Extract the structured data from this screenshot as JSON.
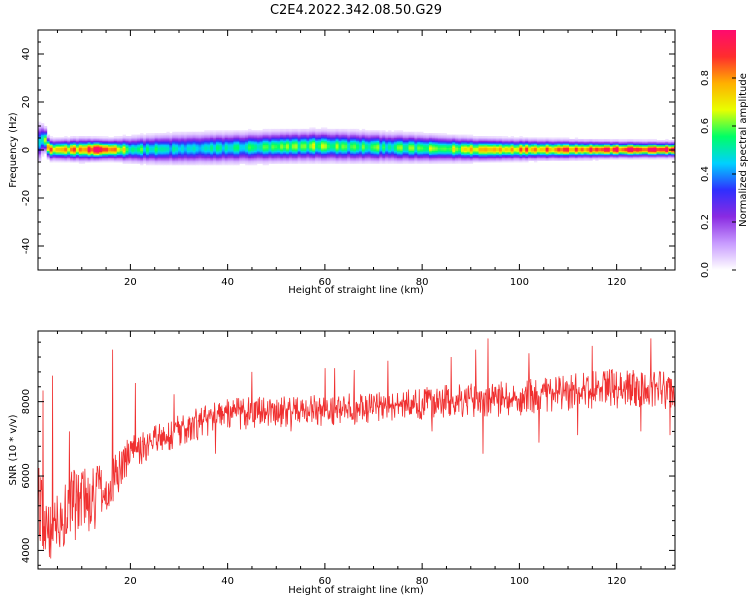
{
  "figure": {
    "title": "C2E4.2022.342.08.50.G29"
  },
  "chart_data": [
    {
      "type": "heatmap",
      "xlabel": "Height of straight line (km)",
      "ylabel": "Frequency (Hz)",
      "xlim": [
        1,
        132
      ],
      "ylim": [
        -50,
        50
      ],
      "xticks": [
        20,
        40,
        60,
        80,
        100,
        120
      ],
      "yticks": [
        -40,
        -20,
        0,
        20,
        40
      ],
      "colorbar": {
        "label": "Normalized spectral amplitude",
        "ticks": [
          0.0,
          0.2,
          0.4,
          0.6,
          0.8
        ],
        "range": [
          0,
          1
        ],
        "colormap": [
          "#ffffff",
          "#c89bff",
          "#8a2be2",
          "#2f2fff",
          "#00d0ff",
          "#00ff66",
          "#e8ff00",
          "#ffb000",
          "#ff2d2d",
          "#ff0a6e"
        ]
      },
      "ridge": [
        {
          "x": 1,
          "center": 3,
          "width": 3.5,
          "peak": 0.55
        },
        {
          "x": 2,
          "center": 5,
          "width": 2.5,
          "peak": 0.6
        },
        {
          "x": 3,
          "center": 0,
          "width": 2,
          "peak": 0.8
        },
        {
          "x": 5,
          "center": 0,
          "width": 2,
          "peak": 0.75
        },
        {
          "x": 10,
          "center": 0,
          "width": 2.2,
          "peak": 0.8
        },
        {
          "x": 13,
          "center": 0,
          "width": 2,
          "peak": 0.95
        },
        {
          "x": 16,
          "center": 0,
          "width": 2,
          "peak": 0.85
        },
        {
          "x": 20,
          "center": 0,
          "width": 2.5,
          "peak": 0.55
        },
        {
          "x": 30,
          "center": 0.3,
          "width": 3,
          "peak": 0.45
        },
        {
          "x": 40,
          "center": 0.7,
          "width": 3,
          "peak": 0.5
        },
        {
          "x": 50,
          "center": 1.2,
          "width": 3,
          "peak": 0.55
        },
        {
          "x": 58,
          "center": 1.5,
          "width": 3,
          "peak": 0.62
        },
        {
          "x": 65,
          "center": 1.2,
          "width": 3,
          "peak": 0.55
        },
        {
          "x": 75,
          "center": 0.8,
          "width": 2.8,
          "peak": 0.55
        },
        {
          "x": 85,
          "center": 0.3,
          "width": 2.5,
          "peak": 0.6
        },
        {
          "x": 91,
          "center": 0,
          "width": 2.2,
          "peak": 0.75
        },
        {
          "x": 100,
          "center": 0,
          "width": 2,
          "peak": 0.8
        },
        {
          "x": 110,
          "center": 0,
          "width": 1.8,
          "peak": 0.88
        },
        {
          "x": 120,
          "center": 0,
          "width": 1.6,
          "peak": 0.92
        },
        {
          "x": 132,
          "center": 0,
          "width": 1.5,
          "peak": 0.95
        }
      ]
    },
    {
      "type": "line",
      "xlabel": "Height of straight line (km)",
      "ylabel": "SNR (10 * v/v)",
      "xlim": [
        1,
        132
      ],
      "ylim": [
        3500,
        9900
      ],
      "xticks": [
        20,
        40,
        60,
        80,
        100,
        120
      ],
      "yticks": [
        4000,
        6000,
        8000
      ],
      "series": [
        {
          "color": "#f03030",
          "envelope": [
            {
              "x": 1,
              "mean": 5000,
              "low": 4400,
              "high": 6700
            },
            {
              "x": 3,
              "mean": 4200,
              "low": 3600,
              "high": 5200
            },
            {
              "x": 5,
              "mean": 4700,
              "low": 4000,
              "high": 5700
            },
            {
              "x": 8,
              "mean": 5000,
              "low": 4200,
              "high": 6200
            },
            {
              "x": 11,
              "mean": 5200,
              "low": 4400,
              "high": 6200
            },
            {
              "x": 14,
              "mean": 5500,
              "low": 4700,
              "high": 6300
            },
            {
              "x": 16,
              "mean": 5900,
              "low": 5200,
              "high": 6500
            },
            {
              "x": 20,
              "mean": 6700,
              "low": 6100,
              "high": 7100
            },
            {
              "x": 25,
              "mean": 7000,
              "low": 6500,
              "high": 7400
            },
            {
              "x": 30,
              "mean": 7300,
              "low": 6800,
              "high": 7700
            },
            {
              "x": 35,
              "mean": 7500,
              "low": 7000,
              "high": 7900
            },
            {
              "x": 40,
              "mean": 7650,
              "low": 7200,
              "high": 8100
            },
            {
              "x": 50,
              "mean": 7750,
              "low": 7300,
              "high": 8150
            },
            {
              "x": 60,
              "mean": 7800,
              "low": 7350,
              "high": 8200
            },
            {
              "x": 70,
              "mean": 7850,
              "low": 7400,
              "high": 8250
            },
            {
              "x": 80,
              "mean": 8000,
              "low": 7500,
              "high": 8400
            },
            {
              "x": 90,
              "mean": 8050,
              "low": 7550,
              "high": 8500
            },
            {
              "x": 100,
              "mean": 8150,
              "low": 7600,
              "high": 8600
            },
            {
              "x": 110,
              "mean": 8300,
              "low": 7750,
              "high": 8800
            },
            {
              "x": 120,
              "mean": 8400,
              "low": 7800,
              "high": 8900
            },
            {
              "x": 132,
              "mean": 8400,
              "low": 7800,
              "high": 8850
            }
          ],
          "spikes": [
            {
              "x": 2.0,
              "y": 8300
            },
            {
              "x": 4.0,
              "y": 8700
            },
            {
              "x": 7.5,
              "y": 7200
            },
            {
              "x": 16.3,
              "y": 9400
            },
            {
              "x": 18.0,
              "y": 6000
            },
            {
              "x": 21.0,
              "y": 8500
            },
            {
              "x": 28.5,
              "y": 6900
            },
            {
              "x": 29.0,
              "y": 8200
            },
            {
              "x": 37.5,
              "y": 6600
            },
            {
              "x": 45.0,
              "y": 8800
            },
            {
              "x": 53.0,
              "y": 7200
            },
            {
              "x": 60.0,
              "y": 8900
            },
            {
              "x": 62.0,
              "y": 8900
            },
            {
              "x": 66.0,
              "y": 8850
            },
            {
              "x": 73.0,
              "y": 9100
            },
            {
              "x": 82.0,
              "y": 7200
            },
            {
              "x": 86.0,
              "y": 9200
            },
            {
              "x": 91.0,
              "y": 9400
            },
            {
              "x": 92.5,
              "y": 6600
            },
            {
              "x": 93.5,
              "y": 9700
            },
            {
              "x": 102.0,
              "y": 9300
            },
            {
              "x": 104.0,
              "y": 6900
            },
            {
              "x": 112.0,
              "y": 7100
            },
            {
              "x": 115.0,
              "y": 9500
            },
            {
              "x": 125.0,
              "y": 7200
            },
            {
              "x": 127.0,
              "y": 9700
            },
            {
              "x": 131.0,
              "y": 7100
            }
          ]
        }
      ]
    }
  ]
}
